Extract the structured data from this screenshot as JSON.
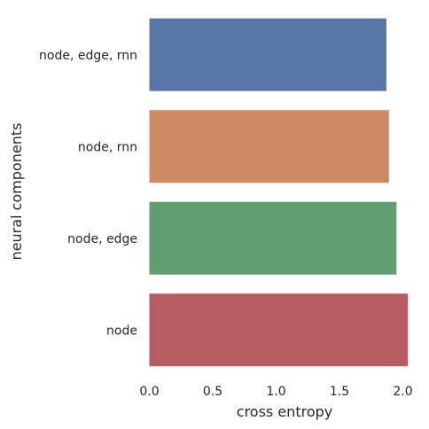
{
  "chart_data": {
    "type": "bar",
    "orientation": "horizontal",
    "categories": [
      "node, edge, rnn",
      "node, rnn",
      "node, edge",
      "node"
    ],
    "values": [
      1.87,
      1.89,
      1.95,
      2.04
    ],
    "colors": [
      "#5876a8",
      "#cd8a63",
      "#5f9e6e",
      "#b75d62"
    ],
    "xlabel": "cross entropy",
    "ylabel": "neural components",
    "xlim": [
      0.0,
      2.0
    ],
    "xticks": [
      "0.0",
      "0.5",
      "1.0",
      "1.5",
      "2.0"
    ],
    "grid": false
  }
}
